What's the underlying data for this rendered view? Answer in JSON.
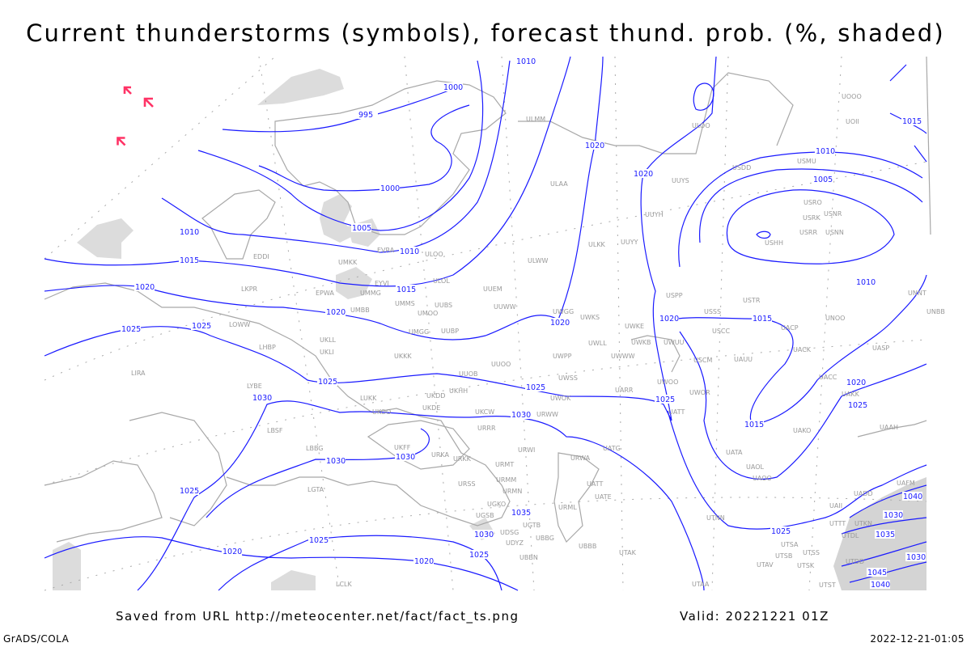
{
  "title": "Current thunderstorms (symbols), forecast thund. prob. (%, shaded)",
  "footer": {
    "source": "Saved from URL http://meteocenter.net/fact/fact_ts.png",
    "valid": "Valid: 20221221 01Z",
    "software": "GrADS/COLA",
    "timestamp": "2022-12-21-01:05"
  },
  "colors": {
    "isobar": "#1a1aff",
    "coastline": "#a8a8a8",
    "station_label": "#999999",
    "thunderstorm_symbol": "#ff3366",
    "probability_shading": "#d8d8d8"
  },
  "thunderstorm_symbol_icon": "thunderstorm-arrow-icon",
  "stations": [
    "EDDI",
    "UMKK",
    "EVRA",
    "ULOO",
    "ULOL",
    "EYVI",
    "UUEM",
    "ULWW",
    "LKPR",
    "EPWA",
    "UMMG",
    "UMMS",
    "UMOO",
    "UUBS",
    "UUWW",
    "UMBB",
    "UMGG",
    "UUBP",
    "UKLL",
    "UKLI",
    "LHBP",
    "LOWW",
    "UKKK",
    "UUOO",
    "UUOB",
    "LYBE",
    "LIRA",
    "LUKK",
    "UKHH",
    "UKDD",
    "UKOO",
    "UKDE",
    "URWW",
    "UKCW",
    "URRR",
    "LBSF",
    "LBBG",
    "UKFF",
    "URKA",
    "URKK",
    "URWI",
    "URMT",
    "URWA",
    "UATG",
    "URMM",
    "URSS",
    "URMN",
    "UATT",
    "UATE",
    "LGTA",
    "UGKO",
    "UGSB",
    "URML",
    "UDSG",
    "UGTB",
    "UBBG",
    "UDYZ",
    "UBBB",
    "UTAK",
    "UBBN",
    "LCLK",
    "UTAA",
    "ULMM",
    "ULOO",
    "ULAA",
    "UUYS",
    "USDD",
    "USMU",
    "USRO",
    "USNR",
    "USRK",
    "USRR",
    "USNN",
    "USHH",
    "ULKK",
    "UUYY",
    "UUYH",
    "UOOO",
    "UOII",
    "USPP",
    "USTR",
    "USSS",
    "USCC",
    "UNOO",
    "UACP",
    "UACK",
    "UASP",
    "UNNT",
    "UNBB",
    "UWUU",
    "UWKE",
    "UWKB",
    "UWWW",
    "UWLL",
    "UWPP",
    "UWKS",
    "UWGG",
    "USCM",
    "UAUU",
    "UACC",
    "UAKK",
    "UWOO",
    "UWOR",
    "UATT",
    "UARR",
    "UWSS",
    "UWOK",
    "UAKO",
    "UATA",
    "UAOL",
    "UAOO",
    "UAAH",
    "UAFM",
    "UADD",
    "UAII",
    "UTTT",
    "UTKN",
    "UTDL",
    "UTSA",
    "UTSS",
    "UTSB",
    "UTAV",
    "UTSK",
    "UTDD",
    "UTST",
    "UTNN"
  ],
  "isobar_labels": [
    "1010",
    "1000",
    "995",
    "1020",
    "1020",
    "1010",
    "1005",
    "1015",
    "1000",
    "1005",
    "1010",
    "1010",
    "1015",
    "1015",
    "1020",
    "1020",
    "1025",
    "1025",
    "1010",
    "1020",
    "1020",
    "1015",
    "1025",
    "1030",
    "1025",
    "1025",
    "1015",
    "1020",
    "1025",
    "1030",
    "1030",
    "1030",
    "1025",
    "1035",
    "1030",
    "1025",
    "1025",
    "1020",
    "1020",
    "1025",
    "1030",
    "1035",
    "1040",
    "1030",
    "1045",
    "1040"
  ]
}
